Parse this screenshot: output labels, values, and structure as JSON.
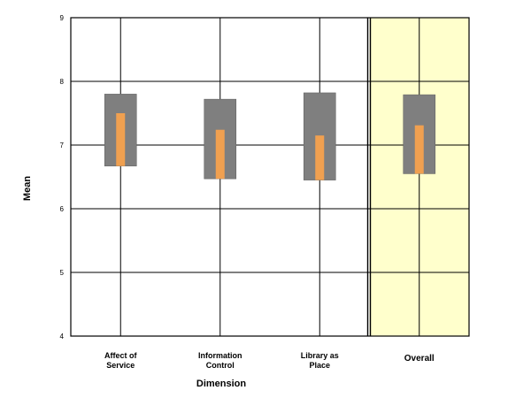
{
  "chart_data": {
    "type": "bar",
    "xlabel": "Dimension",
    "ylabel": "Mean",
    "ylim": [
      4,
      9
    ],
    "yticks": [
      "4",
      "5",
      "6",
      "7",
      "8",
      "9"
    ],
    "grid": true,
    "categories": [
      [
        "Affect of",
        "Service"
      ],
      [
        "Information",
        "Control"
      ],
      [
        "Library as",
        "Place"
      ],
      [
        "Overall"
      ]
    ],
    "series": [
      {
        "role": "range",
        "color": "#7f7f7f",
        "low": [
          6.67,
          6.47,
          6.45,
          6.55
        ],
        "high": [
          7.8,
          7.72,
          7.82,
          7.79
        ]
      },
      {
        "role": "mean",
        "color": "#f0a050",
        "low": [
          6.67,
          6.47,
          6.45,
          6.55
        ],
        "high": [
          7.5,
          7.24,
          7.15,
          7.31
        ]
      }
    ],
    "highlight": {
      "category_index": 3,
      "color": "#ffffcc"
    }
  }
}
